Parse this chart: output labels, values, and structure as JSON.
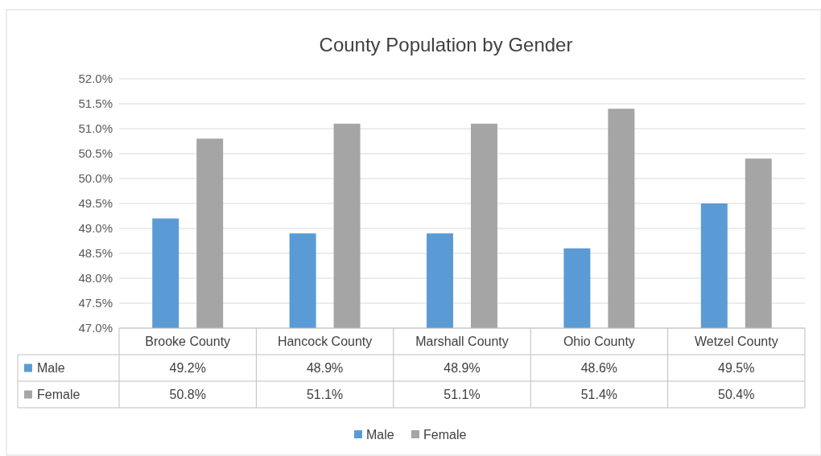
{
  "chart_data": {
    "type": "bar",
    "title": "County Population by Gender",
    "categories": [
      "Brooke County",
      "Hancock County",
      "Marshall County",
      "Ohio County",
      "Wetzel County"
    ],
    "series": [
      {
        "name": "Male",
        "color": "#5b9bd5",
        "values": [
          49.2,
          48.9,
          48.9,
          48.6,
          49.5
        ]
      },
      {
        "name": "Female",
        "color": "#a5a5a5",
        "values": [
          50.8,
          51.1,
          51.1,
          51.4,
          50.4
        ]
      }
    ],
    "value_labels": [
      [
        "49.2%",
        "48.9%",
        "48.9%",
        "48.6%",
        "49.5%"
      ],
      [
        "50.8%",
        "51.1%",
        "51.1%",
        "51.4%",
        "50.4%"
      ]
    ],
    "ylim": [
      47,
      52
    ],
    "yticks": [
      {
        "value": 47,
        "label": "47.0%"
      },
      {
        "value": 47.5,
        "label": "47.5%"
      },
      {
        "value": 48,
        "label": "48.0%"
      },
      {
        "value": 48.5,
        "label": "48.5%"
      },
      {
        "value": 49,
        "label": "49.0%"
      },
      {
        "value": 49.5,
        "label": "49.5%"
      },
      {
        "value": 50,
        "label": "50.0%"
      },
      {
        "value": 50.5,
        "label": "50.5%"
      },
      {
        "value": 51,
        "label": "51.0%"
      },
      {
        "value": 51.5,
        "label": "51.5%"
      },
      {
        "value": 52,
        "label": "52.0%"
      }
    ],
    "grid": "y",
    "legend": "bottom"
  }
}
